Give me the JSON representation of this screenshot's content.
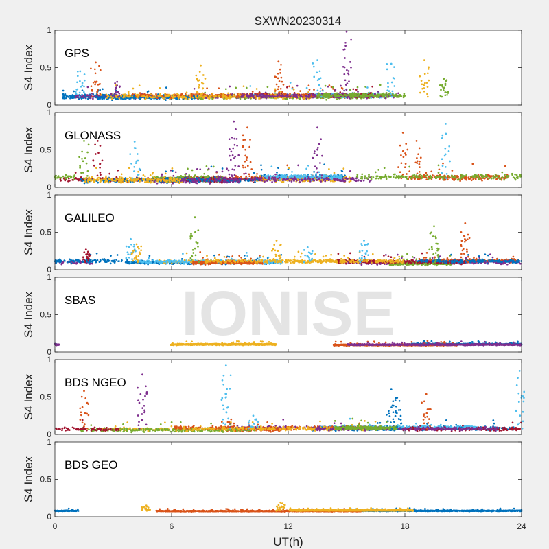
{
  "figure": {
    "title": "SXWN20230314",
    "xlabel": "UT(h)",
    "watermark": "IONISE"
  },
  "chart_data": {
    "type": "scatter",
    "title": "SXWN20230314",
    "xlabel": "UT(h)",
    "xlim": [
      0,
      24
    ],
    "xticks": [
      "0",
      "6",
      "12",
      "18",
      "24"
    ],
    "ylabel": "S4 Index",
    "ylim": [
      0,
      1
    ],
    "yticks": [
      "0",
      "0.5",
      "1"
    ],
    "grid": false,
    "colors": [
      "#0072BD",
      "#D95319",
      "#EDB120",
      "#7E2F8E",
      "#77AC30",
      "#4DBEEE",
      "#A2142F"
    ],
    "panels": [
      {
        "name": "GPS",
        "baseline": 0.11,
        "noise": 0.05,
        "tracks": 12,
        "spikes": [
          {
            "x": 1.3,
            "y": 0.45,
            "color": 5
          },
          {
            "x": 2.1,
            "y": 0.57,
            "color": 1
          },
          {
            "x": 3.2,
            "y": 0.31,
            "color": 3
          },
          {
            "x": 7.5,
            "y": 0.53,
            "color": 2
          },
          {
            "x": 11.5,
            "y": 0.58,
            "color": 1
          },
          {
            "x": 13.5,
            "y": 0.6,
            "color": 5
          },
          {
            "x": 15.0,
            "y": 0.98,
            "color": 3
          },
          {
            "x": 17.3,
            "y": 0.55,
            "color": 5
          },
          {
            "x": 19.0,
            "y": 0.6,
            "color": 2
          },
          {
            "x": 20.0,
            "y": 0.35,
            "color": 4
          }
        ]
      },
      {
        "name": "GLONASS",
        "baseline": 0.12,
        "noise": 0.06,
        "tracks": 12,
        "spikes": [
          {
            "x": 1.5,
            "y": 0.62,
            "color": 4
          },
          {
            "x": 2.2,
            "y": 0.62,
            "color": 6
          },
          {
            "x": 4.1,
            "y": 0.61,
            "color": 5
          },
          {
            "x": 9.2,
            "y": 0.88,
            "color": 3
          },
          {
            "x": 9.9,
            "y": 0.8,
            "color": 1
          },
          {
            "x": 13.5,
            "y": 0.8,
            "color": 3
          },
          {
            "x": 17.9,
            "y": 0.73,
            "color": 1
          },
          {
            "x": 18.6,
            "y": 0.62,
            "color": 1
          },
          {
            "x": 20.1,
            "y": 0.85,
            "color": 5
          }
        ]
      },
      {
        "name": "GALILEO",
        "baseline": 0.1,
        "noise": 0.04,
        "tracks": 10,
        "spikes": [
          {
            "x": 1.6,
            "y": 0.27,
            "color": 6
          },
          {
            "x": 3.9,
            "y": 0.41,
            "color": 5
          },
          {
            "x": 4.2,
            "y": 0.34,
            "color": 2
          },
          {
            "x": 7.2,
            "y": 0.7,
            "color": 4
          },
          {
            "x": 11.4,
            "y": 0.39,
            "color": 2
          },
          {
            "x": 13.0,
            "y": 0.3,
            "color": 5
          },
          {
            "x": 15.9,
            "y": 0.39,
            "color": 5
          },
          {
            "x": 19.5,
            "y": 0.58,
            "color": 4
          },
          {
            "x": 21.1,
            "y": 0.62,
            "color": 1
          }
        ]
      },
      {
        "name": "SBAS",
        "baseline": 0.1,
        "noise": 0.015,
        "tracks": 4,
        "spikes": []
      },
      {
        "name": "BDS NGEO",
        "baseline": 0.08,
        "noise": 0.04,
        "tracks": 12,
        "spikes": [
          {
            "x": 1.5,
            "y": 0.58,
            "color": 1
          },
          {
            "x": 4.5,
            "y": 0.8,
            "color": 3
          },
          {
            "x": 8.8,
            "y": 0.92,
            "color": 5
          },
          {
            "x": 10.2,
            "y": 0.25,
            "color": 5
          },
          {
            "x": 17.3,
            "y": 0.6,
            "color": 0
          },
          {
            "x": 17.6,
            "y": 0.49,
            "color": 0
          },
          {
            "x": 19.1,
            "y": 0.54,
            "color": 1
          },
          {
            "x": 23.9,
            "y": 0.85,
            "color": 5
          }
        ]
      },
      {
        "name": "BDS GEO",
        "baseline": 0.08,
        "noise": 0.01,
        "tracks": 3,
        "spikes": [
          {
            "x": 4.7,
            "y": 0.15,
            "color": 2
          },
          {
            "x": 11.6,
            "y": 0.19,
            "color": 2
          }
        ]
      }
    ]
  }
}
